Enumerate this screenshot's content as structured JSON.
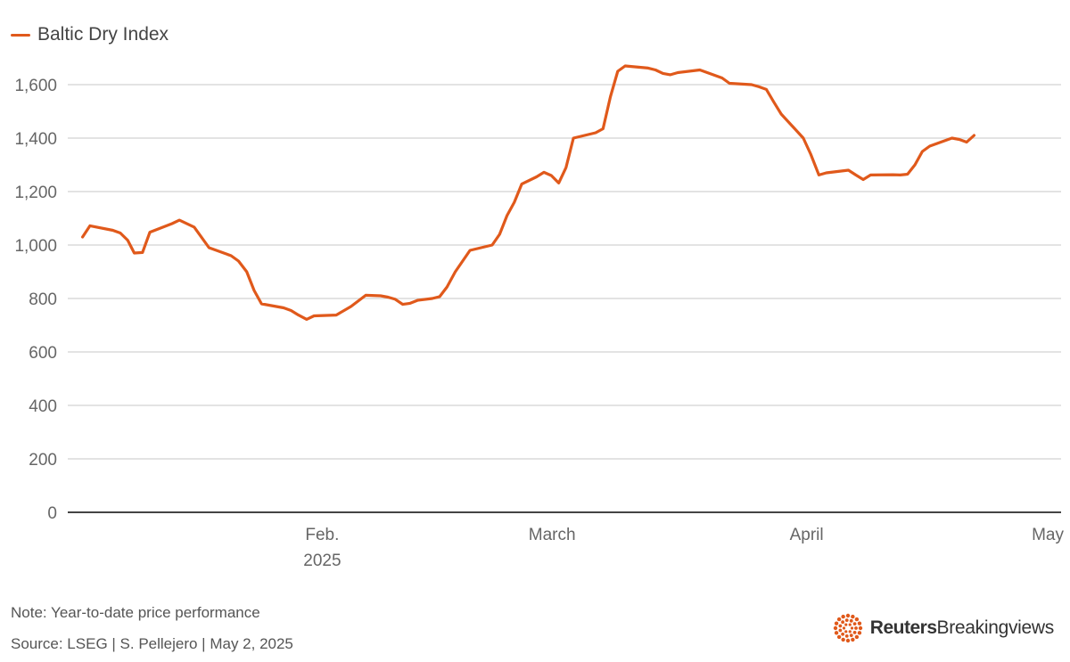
{
  "colors": {
    "series": "#e0591b",
    "grid": "#d2d2d2",
    "axis": "#444444",
    "text": "#666666",
    "brand_icon": "#e0591b"
  },
  "legend": {
    "label": "Baltic Dry Index"
  },
  "footer": {
    "note": "Note: Year-to-date price performance",
    "source": "Source: LSEG | S. Pellejero | May 2, 2025"
  },
  "brand": {
    "icon": "reuters-dot-circle-icon",
    "name_bold": "Reuters",
    "name_light": "Breakingviews"
  },
  "chart_data": {
    "type": "line",
    "title": "",
    "xlabel": "",
    "ylabel": "",
    "ylim": [
      0,
      1700
    ],
    "yticks": [
      0,
      200,
      400,
      600,
      800,
      1000,
      1200,
      1400,
      1600
    ],
    "ytick_labels": [
      "0",
      "200",
      "400",
      "600",
      "800",
      "1,000",
      "1,200",
      "1,400",
      "1,600"
    ],
    "grid": true,
    "legend_position": "top-left",
    "x_range_days": [
      0,
      121
    ],
    "x_ticks": [
      {
        "day": 31,
        "label": "Feb.",
        "sublabel": "2025"
      },
      {
        "day": 59,
        "label": "March",
        "sublabel": ""
      },
      {
        "day": 90,
        "label": "April",
        "sublabel": ""
      },
      {
        "day": 120,
        "label": "May",
        "sublabel": ""
      }
    ],
    "series": [
      {
        "name": "Baltic Dry Index",
        "x_unit": "days since Jan 1, 2025",
        "points": [
          [
            1.8,
            1030
          ],
          [
            2.7,
            1072
          ],
          [
            5.5,
            1055
          ],
          [
            6.4,
            1045
          ],
          [
            7.3,
            1018
          ],
          [
            8.1,
            970
          ],
          [
            9.1,
            972
          ],
          [
            10.0,
            1048
          ],
          [
            12.7,
            1080
          ],
          [
            13.6,
            1093
          ],
          [
            15.4,
            1067
          ],
          [
            17.2,
            990
          ],
          [
            19.9,
            960
          ],
          [
            20.8,
            940
          ],
          [
            21.8,
            900
          ],
          [
            22.7,
            830
          ],
          [
            23.6,
            780
          ],
          [
            26.3,
            765
          ],
          [
            27.2,
            755
          ],
          [
            28.1,
            738
          ],
          [
            29.1,
            722
          ],
          [
            30.0,
            735
          ],
          [
            32.7,
            738
          ],
          [
            34.5,
            770
          ],
          [
            36.3,
            812
          ],
          [
            38.1,
            810
          ],
          [
            39.0,
            805
          ],
          [
            39.9,
            797
          ],
          [
            40.8,
            778
          ],
          [
            41.7,
            782
          ],
          [
            42.6,
            793
          ],
          [
            44.4,
            800
          ],
          [
            45.3,
            807
          ],
          [
            46.2,
            843
          ],
          [
            47.2,
            900
          ],
          [
            49.0,
            980
          ],
          [
            51.7,
            1000
          ],
          [
            52.6,
            1040
          ],
          [
            53.5,
            1110
          ],
          [
            54.4,
            1160
          ],
          [
            55.3,
            1228
          ],
          [
            57.1,
            1255
          ],
          [
            58.0,
            1272
          ],
          [
            58.9,
            1260
          ],
          [
            59.8,
            1232
          ],
          [
            60.7,
            1290
          ],
          [
            61.6,
            1400
          ],
          [
            64.3,
            1420
          ],
          [
            65.2,
            1435
          ],
          [
            66.1,
            1555
          ],
          [
            67.0,
            1650
          ],
          [
            67.9,
            1670
          ],
          [
            70.7,
            1662
          ],
          [
            71.6,
            1655
          ],
          [
            72.5,
            1642
          ],
          [
            73.4,
            1637
          ],
          [
            74.3,
            1645
          ],
          [
            77.0,
            1655
          ],
          [
            77.9,
            1645
          ],
          [
            78.8,
            1635
          ],
          [
            79.7,
            1625
          ],
          [
            80.6,
            1605
          ],
          [
            83.3,
            1600
          ],
          [
            84.2,
            1592
          ],
          [
            85.1,
            1582
          ],
          [
            86.0,
            1535
          ],
          [
            86.9,
            1490
          ],
          [
            89.6,
            1400
          ],
          [
            90.5,
            1340
          ],
          [
            91.5,
            1262
          ],
          [
            92.4,
            1270
          ],
          [
            95.1,
            1280
          ],
          [
            96.0,
            1262
          ],
          [
            96.9,
            1245
          ],
          [
            97.8,
            1262
          ],
          [
            100.5,
            1263
          ],
          [
            101.4,
            1262
          ],
          [
            102.3,
            1265
          ],
          [
            103.2,
            1300
          ],
          [
            104.1,
            1350
          ],
          [
            105.0,
            1370
          ],
          [
            107.7,
            1400
          ],
          [
            108.6,
            1395
          ],
          [
            109.5,
            1385
          ],
          [
            110.4,
            1410
          ]
        ]
      }
    ]
  }
}
